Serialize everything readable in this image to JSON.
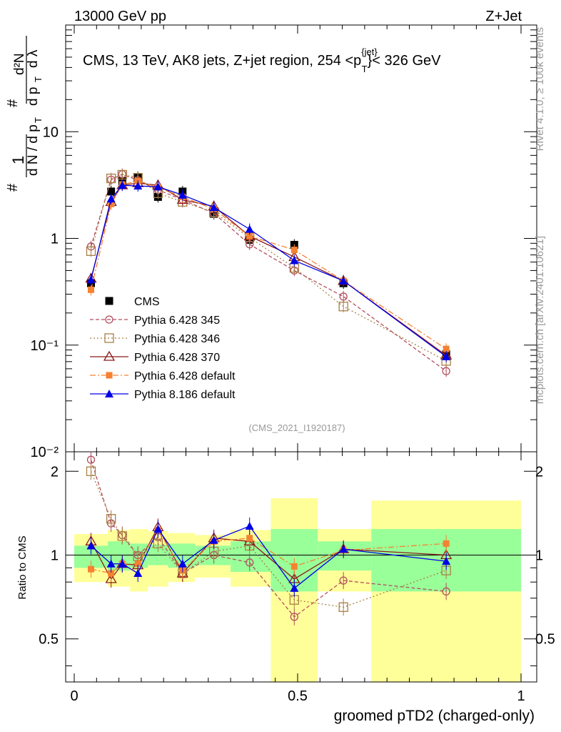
{
  "header": {
    "left": "13000 GeV pp",
    "right": "Z+Jet"
  },
  "title": "CMS, 13 TeV, AK8 jets, Z+jet region, 254 <p",
  "title_sup": "{jet}",
  "title_sub": "T",
  "title_tail": "}< 326 GeV",
  "side_label_top": "Rivet 4.1.0, ≥ 100k events",
  "side_label_bottom": "mcplots.cern.ch [arXiv:2401.10621]",
  "watermark": "(CMS_2021_I1920187)",
  "ylabel_top": "#  1/dN/dp_T  # d²N/dp_T dλ",
  "ylabel_ratio": "Ratio to CMS",
  "xlabel": "groomed pTD2 (charged-only)",
  "colors": {
    "data": "#000000",
    "p345": "#b34d5e",
    "p346": "#a77f45",
    "p370": "#8b1a1a",
    "p6def": "#f58231",
    "p8def": "#0000e6",
    "band_inner": "#99ff99",
    "band_outer": "#ffff99"
  },
  "chart_data": {
    "type": "line",
    "x": [
      0.0375,
      0.0825,
      0.1075,
      0.1425,
      0.1875,
      0.2425,
      0.3125,
      0.3925,
      0.4925,
      0.6025,
      0.8325
    ],
    "xlim": [
      0,
      1
    ],
    "xticks": [
      0,
      0.5,
      1
    ],
    "xtick_labels": [
      "0",
      "0.5",
      "1"
    ],
    "ylim_main": [
      0.01,
      100
    ],
    "ytick_labels_main": [
      "10⁻²",
      "10⁻¹",
      "1",
      "10"
    ],
    "ylim_ratio": [
      0.35,
      2.35
    ],
    "yticks_ratio": [
      0.5,
      1,
      2
    ],
    "ytick_labels_ratio": [
      "0.5",
      "1",
      "2"
    ],
    "series": [
      {
        "name": "CMS",
        "key": "data",
        "marker": "square-filled",
        "dash": "none",
        "values": [
          0.38,
          2.75,
          3.45,
          3.75,
          2.45,
          2.75,
          1.7,
          0.97,
          0.87,
          0.38,
          0.082
        ]
      },
      {
        "name": "Pythia 6.428 345",
        "key": "p345",
        "marker": "circle-open",
        "dash": "5,3",
        "values": [
          0.84,
          3.55,
          4.0,
          3.5,
          2.85,
          2.3,
          1.72,
          0.88,
          0.5,
          0.285,
          0.057
        ],
        "ratio": [
          2.2,
          1.3,
          1.18,
          1.0,
          1.16,
          0.86,
          1.0,
          0.94,
          0.6,
          0.81,
          0.74
        ]
      },
      {
        "name": "Pythia 6.428 346",
        "key": "p346",
        "marker": "square-open",
        "dash": "2,3",
        "values": [
          0.76,
          3.65,
          3.95,
          3.7,
          2.65,
          2.2,
          1.76,
          1.02,
          0.53,
          0.23,
          0.071
        ],
        "ratio": [
          2.0,
          1.35,
          1.17,
          0.99,
          1.1,
          0.86,
          1.03,
          1.08,
          0.69,
          0.65,
          0.88
        ]
      },
      {
        "name": "Pythia 6.428 370",
        "key": "p370",
        "marker": "triangle-open",
        "dash": "none",
        "values": [
          0.42,
          2.2,
          3.15,
          3.3,
          3.15,
          2.3,
          2.0,
          1.05,
          0.67,
          0.4,
          0.08
        ],
        "ratio": [
          1.12,
          0.82,
          0.93,
          0.92,
          1.26,
          0.86,
          1.15,
          1.12,
          0.82,
          1.05,
          1.0
        ]
      },
      {
        "name": "Pythia 6.428 default",
        "key": "p6def",
        "marker": "square-filled-small",
        "dash": "8,3,2,3",
        "values": [
          0.33,
          2.1,
          3.2,
          3.45,
          3.0,
          2.45,
          1.88,
          1.05,
          0.78,
          0.4,
          0.092
        ],
        "ratio": [
          0.89,
          0.86,
          0.93,
          0.93,
          1.23,
          0.88,
          1.12,
          1.15,
          0.91,
          1.04,
          1.1
        ]
      },
      {
        "name": "Pythia 8.186 default",
        "key": "p8def",
        "marker": "triangle-filled",
        "dash": "none",
        "values": [
          0.41,
          2.35,
          3.15,
          3.1,
          3.05,
          2.55,
          1.95,
          1.22,
          0.62,
          0.4,
          0.078
        ],
        "ratio": [
          1.08,
          0.93,
          0.93,
          0.86,
          1.24,
          0.93,
          1.13,
          1.27,
          0.76,
          1.05,
          0.95
        ]
      }
    ],
    "bands": {
      "edges": [
        0.0,
        0.075,
        0.125,
        0.165,
        0.21,
        0.27,
        0.35,
        0.44,
        0.545,
        0.665,
        1.0
      ],
      "inner": [
        [
          0.9,
          1.08
        ],
        [
          0.88,
          1.12
        ],
        [
          0.9,
          1.1
        ],
        [
          0.92,
          1.09
        ],
        [
          0.9,
          1.1
        ],
        [
          0.92,
          1.08
        ],
        [
          0.87,
          1.12
        ],
        [
          0.74,
          1.24
        ],
        [
          0.88,
          1.12
        ],
        [
          0.74,
          1.24
        ]
      ],
      "outer": [
        [
          0.8,
          1.19
        ],
        [
          0.77,
          1.23
        ],
        [
          0.74,
          1.24
        ],
        [
          0.77,
          1.22
        ],
        [
          0.8,
          1.2
        ],
        [
          0.83,
          1.18
        ],
        [
          0.77,
          1.23
        ],
        [
          0.35,
          1.6
        ],
        [
          0.74,
          1.24
        ],
        [
          0.35,
          1.57
        ]
      ]
    }
  }
}
